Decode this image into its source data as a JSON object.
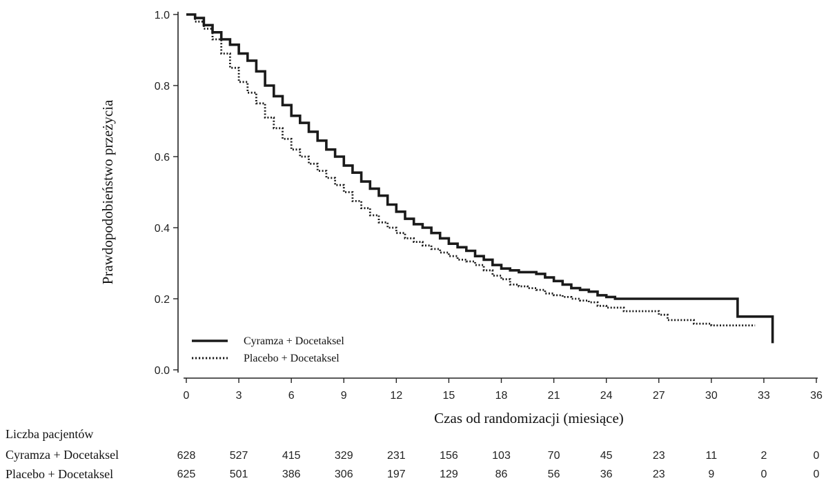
{
  "chart_data": {
    "type": "line",
    "title": "",
    "xlabel": "Czas od randomizacji (miesiące)",
    "ylabel": "Prawdopodobieństwo przeżycia",
    "xlim": [
      0,
      36
    ],
    "ylim": [
      0,
      1.0
    ],
    "x_ticks": [
      "0",
      "3",
      "6",
      "9",
      "12",
      "15",
      "18",
      "21",
      "24",
      "27",
      "30",
      "33",
      "36"
    ],
    "y_ticks": [
      "0.0",
      "0.2",
      "0.4",
      "0.6",
      "0.8",
      "1.0"
    ],
    "grid": false,
    "legend_position": "bottom-left",
    "series": [
      {
        "name": "Cyramza + Docetaksel",
        "style": "solid",
        "color": "#1a1a1a",
        "x": [
          0,
          0.5,
          1,
          1.5,
          2,
          2.5,
          3,
          3.5,
          4,
          4.5,
          5,
          5.5,
          6,
          6.5,
          7,
          7.5,
          8,
          8.5,
          9,
          9.5,
          10,
          10.5,
          11,
          11.5,
          12,
          12.5,
          13,
          13.5,
          14,
          14.5,
          15,
          15.5,
          16,
          16.5,
          17,
          17.5,
          18,
          18.5,
          19,
          19.5,
          20,
          20.5,
          21,
          21.5,
          22,
          22.5,
          23,
          23.5,
          24,
          24.5,
          25,
          27,
          29,
          31,
          31.5,
          33,
          33.5,
          33.5
        ],
        "y": [
          1.0,
          0.99,
          0.97,
          0.95,
          0.93,
          0.915,
          0.89,
          0.87,
          0.84,
          0.8,
          0.77,
          0.745,
          0.715,
          0.695,
          0.67,
          0.645,
          0.62,
          0.6,
          0.575,
          0.555,
          0.53,
          0.51,
          0.49,
          0.465,
          0.445,
          0.425,
          0.41,
          0.4,
          0.385,
          0.37,
          0.355,
          0.345,
          0.335,
          0.32,
          0.31,
          0.295,
          0.285,
          0.28,
          0.275,
          0.275,
          0.27,
          0.26,
          0.25,
          0.24,
          0.23,
          0.225,
          0.22,
          0.21,
          0.205,
          0.2,
          0.2,
          0.2,
          0.2,
          0.2,
          0.15,
          0.15,
          0.15,
          0.075
        ]
      },
      {
        "name": "Placebo + Docetaksel",
        "style": "dotted",
        "color": "#1a1a1a",
        "x": [
          0,
          0.5,
          1,
          1.5,
          2,
          2.5,
          3,
          3.5,
          4,
          4.5,
          5,
          5.5,
          6,
          6.5,
          7,
          7.5,
          8,
          8.5,
          9,
          9.5,
          10,
          10.5,
          11,
          11.5,
          12,
          12.5,
          13,
          13.5,
          14,
          14.5,
          15,
          15.5,
          16,
          16.5,
          17,
          17.5,
          18,
          18.5,
          19,
          19.5,
          20,
          20.5,
          21,
          21.5,
          22,
          22.5,
          23,
          23.5,
          24,
          25,
          26,
          27,
          27.5,
          28,
          29,
          30,
          31,
          32.5
        ],
        "y": [
          1.0,
          0.98,
          0.96,
          0.93,
          0.89,
          0.85,
          0.81,
          0.78,
          0.75,
          0.71,
          0.68,
          0.65,
          0.62,
          0.6,
          0.58,
          0.56,
          0.54,
          0.52,
          0.5,
          0.475,
          0.455,
          0.435,
          0.415,
          0.4,
          0.385,
          0.37,
          0.36,
          0.35,
          0.34,
          0.33,
          0.32,
          0.31,
          0.305,
          0.295,
          0.28,
          0.265,
          0.255,
          0.24,
          0.235,
          0.23,
          0.225,
          0.215,
          0.21,
          0.205,
          0.2,
          0.195,
          0.19,
          0.18,
          0.175,
          0.165,
          0.165,
          0.155,
          0.14,
          0.14,
          0.13,
          0.125,
          0.125,
          0.125
        ]
      }
    ],
    "risk_table": {
      "title": "Liczba pacjentów",
      "times": [
        0,
        3,
        6,
        9,
        12,
        15,
        18,
        21,
        24,
        27,
        30,
        33,
        36
      ],
      "rows": [
        {
          "label": "Cyramza + Docetaksel",
          "values": [
            "628",
            "527",
            "415",
            "329",
            "231",
            "156",
            "103",
            "70",
            "45",
            "23",
            "11",
            "2",
            "0"
          ]
        },
        {
          "label": "Placebo + Docetaksel",
          "values": [
            "625",
            "501",
            "386",
            "306",
            "197",
            "129",
            "86",
            "56",
            "36",
            "23",
            "9",
            "0",
            "0"
          ]
        }
      ]
    }
  }
}
